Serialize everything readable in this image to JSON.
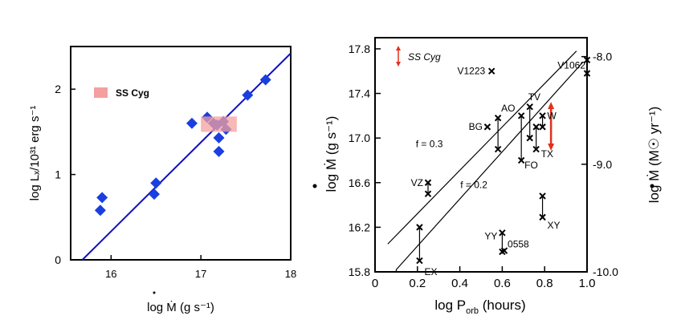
{
  "chart_data": [
    {
      "type": "scatter",
      "title": "",
      "xlabel": "log Ṁ (g s⁻¹)",
      "ylabel": "log Lₓ/10³¹ erg s⁻¹",
      "xlim": [
        15.55,
        18
      ],
      "ylim": [
        0,
        2.5
      ],
      "xticks": [
        16,
        17,
        18
      ],
      "yticks": [
        0,
        1,
        2
      ],
      "legend": {
        "label": "SS Cyg",
        "color": "#f4a0a0",
        "placement": "upper-left"
      },
      "fit_line": {
        "x": [
          15.68,
          18.0
        ],
        "y": [
          0.0,
          2.42
        ],
        "color": "#1010c0"
      },
      "ss_cyg_box": {
        "x": [
          17.0,
          17.4
        ],
        "y": [
          1.5,
          1.68
        ]
      },
      "points": [
        {
          "x": 15.9,
          "y": 0.73
        },
        {
          "x": 15.88,
          "y": 0.58
        },
        {
          "x": 16.5,
          "y": 0.9
        },
        {
          "x": 16.48,
          "y": 0.77
        },
        {
          "x": 16.9,
          "y": 1.6
        },
        {
          "x": 17.07,
          "y": 1.67
        },
        {
          "x": 17.14,
          "y": 1.6
        },
        {
          "x": 17.18,
          "y": 1.58
        },
        {
          "x": 17.25,
          "y": 1.62
        },
        {
          "x": 17.28,
          "y": 1.53
        },
        {
          "x": 17.2,
          "y": 1.43
        },
        {
          "x": 17.2,
          "y": 1.27
        },
        {
          "x": 17.52,
          "y": 1.93
        },
        {
          "x": 17.72,
          "y": 2.11
        }
      ],
      "marker_color": "#1a3fe0"
    },
    {
      "type": "scatter",
      "title": "",
      "xlabel": "log P",
      "xlabel_sub": "orb",
      "xlabel_unit": " (hours)",
      "ylabel": "log Ṁ (g s⁻¹)",
      "y2label": "log Ṁ (M☉ yr⁻¹)",
      "xlim": [
        0,
        1.0
      ],
      "ylim": [
        15.8,
        17.9
      ],
      "xticks": [
        "0",
        "0.2",
        "0.4",
        "0.6",
        "0.8",
        "1.0"
      ],
      "yticks": [
        "15.8",
        "16.2",
        "16.6",
        "17.0",
        "17.4",
        "17.8"
      ],
      "y2ticks": [
        "-8.0",
        "-9.0",
        "-10.0"
      ],
      "legend": {
        "label": "SS Cyg",
        "color": "#e0301e"
      },
      "lines": [
        {
          "name": "f = 0.3",
          "x": [
            0.06,
            0.95
          ],
          "y": [
            16.05,
            17.78
          ]
        },
        {
          "name": "f = 0.2",
          "x": [
            0.1,
            0.98
          ],
          "y": [
            15.82,
            17.68
          ]
        }
      ],
      "ss_cyg_arrow": {
        "x": 0.83,
        "y": [
          16.9,
          17.31
        ]
      },
      "systems": [
        {
          "name": "V1223",
          "x": 0.55,
          "y": [
            17.6
          ]
        },
        {
          "name": "V1062",
          "x": 1.0,
          "y": [
            17.58,
            17.7
          ]
        },
        {
          "name": "AO",
          "x": 0.58,
          "y": [
            17.18,
            16.9
          ]
        },
        {
          "name": "BG",
          "x": 0.53,
          "y": [
            17.1
          ]
        },
        {
          "name": "TV",
          "x": 0.73,
          "y": [
            17.28,
            17.0
          ]
        },
        {
          "name": "W",
          "x": 0.79,
          "y": [
            17.2,
            17.1
          ]
        },
        {
          "name": "TX",
          "x": 0.76,
          "y": [
            17.1,
            16.9
          ]
        },
        {
          "name": "FO",
          "x": 0.69,
          "y": [
            17.2,
            16.8
          ]
        },
        {
          "name": "VZ",
          "x": 0.25,
          "y": [
            16.6,
            16.5
          ]
        },
        {
          "name": "XY",
          "x": 0.79,
          "y": [
            16.48,
            16.29
          ]
        },
        {
          "name": "YY",
          "x": 0.6,
          "y": [
            16.15,
            15.98
          ]
        },
        {
          "name": "0558",
          "x": 0.61,
          "y": [
            15.99
          ]
        },
        {
          "name": "EX",
          "x": 0.21,
          "y": [
            16.2,
            15.9
          ]
        }
      ]
    }
  ]
}
